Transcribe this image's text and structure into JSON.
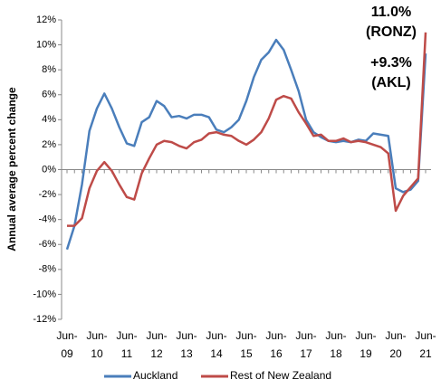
{
  "chart_data": {
    "type": "line",
    "y_label": "Annual average percent change",
    "categories": [
      "Jun- 09",
      null,
      null,
      null,
      "Jun- 10",
      null,
      null,
      null,
      "Jun- 11",
      null,
      null,
      null,
      "Jun- 12",
      null,
      null,
      null,
      "Jun- 13",
      null,
      null,
      null,
      "Jun- 14",
      null,
      null,
      null,
      "Jun- 15",
      null,
      null,
      null,
      "Jun- 16",
      null,
      null,
      null,
      "Jun- 17",
      null,
      null,
      null,
      "Jun- 18",
      null,
      null,
      null,
      "Jun- 19",
      null,
      null,
      null,
      "Jun- 20",
      null,
      null,
      null,
      "Jun- 21"
    ],
    "series": [
      {
        "name": "Auckland",
        "color": "#4a7ebb",
        "values": [
          -6.4,
          -4.5,
          -1.2,
          3.1,
          4.9,
          6.1,
          4.9,
          3.4,
          2.1,
          1.9,
          3.8,
          4.2,
          5.5,
          5.1,
          4.2,
          4.3,
          4.1,
          4.4,
          4.4,
          4.2,
          3.2,
          3.0,
          3.4,
          4.0,
          5.5,
          7.4,
          8.8,
          9.4,
          10.4,
          9.6,
          8.0,
          6.3,
          4.0,
          3.0,
          2.6,
          2.3,
          2.2,
          2.3,
          2.2,
          2.4,
          2.3,
          2.9,
          2.8,
          2.7,
          -1.5,
          -1.8,
          -1.6,
          -0.9,
          9.3
        ]
      },
      {
        "name": "Rest of New Zealand",
        "color": "#be4b48",
        "values": [
          -4.5,
          -4.5,
          -3.9,
          -1.5,
          -0.1,
          0.6,
          -0.1,
          -1.2,
          -2.2,
          -2.4,
          -0.3,
          0.9,
          2.0,
          2.3,
          2.2,
          1.9,
          1.7,
          2.2,
          2.4,
          2.9,
          3.0,
          2.8,
          2.7,
          2.3,
          2.0,
          2.4,
          3.0,
          4.1,
          5.6,
          5.9,
          5.7,
          4.6,
          3.7,
          2.7,
          2.8,
          2.3,
          2.3,
          2.5,
          2.2,
          2.3,
          2.2,
          2.0,
          1.8,
          1.3,
          -3.3,
          -2.1,
          -1.4,
          -0.7,
          11.0
        ]
      }
    ],
    "annotations": [
      {
        "lines": [
          "11.0%",
          "(RONZ)"
        ],
        "color": "#c0302c"
      },
      {
        "lines": [
          "+9.3%",
          "(AKL)"
        ],
        "color": "#2e86c8"
      }
    ],
    "ylim": [
      -12,
      12
    ],
    "yticks": [
      {
        "value": -12,
        "label": "-12%"
      },
      {
        "value": -10,
        "label": "-10%"
      },
      {
        "value": -8,
        "label": "-8%"
      },
      {
        "value": -6,
        "label": "-6%"
      },
      {
        "value": -4,
        "label": "-4%"
      },
      {
        "value": -2,
        "label": "-2%"
      },
      {
        "value": 0,
        "label": "0%"
      },
      {
        "value": 2,
        "label": "2%"
      },
      {
        "value": 4,
        "label": "4%"
      },
      {
        "value": 6,
        "label": "6%"
      },
      {
        "value": 8,
        "label": "8%"
      },
      {
        "value": 10,
        "label": "10%"
      },
      {
        "value": 12,
        "label": "12%"
      }
    ],
    "grid": false,
    "legend": "bottom"
  }
}
